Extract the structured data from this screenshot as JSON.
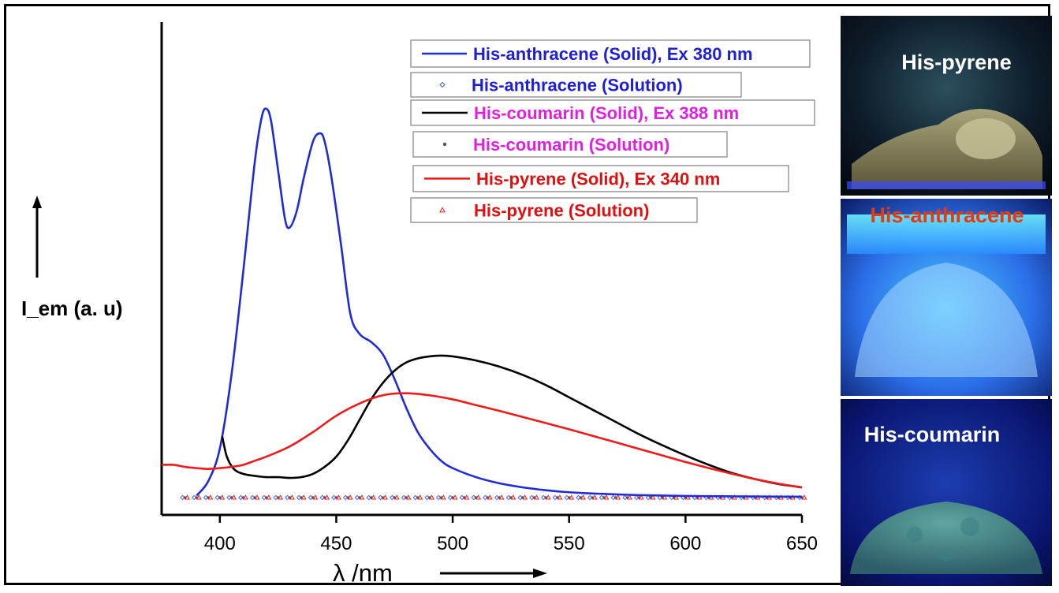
{
  "chart_data": {
    "type": "line",
    "title": "",
    "xlabel": "λ /nm",
    "ylabel": "I_em (a. u)",
    "xlim": [
      375,
      650
    ],
    "ylim": [
      0,
      1
    ],
    "x_ticks": [
      400,
      450,
      500,
      550,
      600,
      650
    ],
    "grid": false,
    "legend_position": "top-center",
    "legend": [
      {
        "label": "His-anthracene (Solid), Ex 380 nm",
        "text_color": "#1f1fd8",
        "color": "#1f2bd6",
        "marker": "line"
      },
      {
        "label": "His-anthracene (Solution)",
        "text_color": "#1f1fd8",
        "color": "#4a5cff",
        "marker": "diamond"
      },
      {
        "label": "His-coumarin (Solid), Ex 388 nm",
        "text_color": "#e020e0",
        "color": "#000000",
        "marker": "line"
      },
      {
        "label": "His-coumarin (Solution)",
        "text_color": "#e020e0",
        "color": "#555555",
        "marker": "dot"
      },
      {
        "label": "His-pyrene (Solid), Ex 340 nm",
        "text_color": "#e01010",
        "color": "#ee1b1b",
        "marker": "line"
      },
      {
        "label": "His-pyrene (Solution)",
        "text_color": "#e01010",
        "color": "#ee1b1b",
        "marker": "triangle"
      }
    ],
    "series": [
      {
        "key": "anth_solid",
        "color": "#1f2bd6",
        "style": "line",
        "x": [
          390,
          395,
          400,
          405,
          410,
          415,
          418,
          420,
          422,
          425,
          428,
          430,
          433,
          436,
          440,
          443,
          445,
          448,
          452,
          456,
          460,
          465,
          470,
          475,
          480,
          485,
          490,
          495,
          500,
          510,
          520,
          530,
          540,
          550,
          560,
          580,
          600,
          620,
          650
        ],
        "y": [
          0.005,
          0.04,
          0.12,
          0.3,
          0.55,
          0.82,
          0.93,
          0.95,
          0.92,
          0.8,
          0.68,
          0.66,
          0.7,
          0.78,
          0.87,
          0.89,
          0.87,
          0.78,
          0.62,
          0.45,
          0.4,
          0.38,
          0.35,
          0.29,
          0.22,
          0.16,
          0.12,
          0.09,
          0.072,
          0.05,
          0.035,
          0.025,
          0.018,
          0.013,
          0.01,
          0.006,
          0.004,
          0.003,
          0.002
        ]
      },
      {
        "key": "coum_solid",
        "color": "#000000",
        "style": "line",
        "x": [
          401,
          403,
          406,
          410,
          415,
          420,
          425,
          430,
          435,
          440,
          445,
          450,
          455,
          460,
          465,
          470,
          475,
          480,
          485,
          490,
          495,
          500,
          510,
          520,
          530,
          540,
          550,
          560,
          570,
          580,
          590,
          600,
          610,
          620,
          630,
          640,
          650
        ],
        "y": [
          0.15,
          0.1,
          0.07,
          0.058,
          0.053,
          0.05,
          0.05,
          0.048,
          0.05,
          0.058,
          0.075,
          0.1,
          0.14,
          0.19,
          0.24,
          0.28,
          0.31,
          0.33,
          0.34,
          0.345,
          0.347,
          0.345,
          0.335,
          0.32,
          0.3,
          0.275,
          0.245,
          0.215,
          0.185,
          0.155,
          0.128,
          0.103,
          0.08,
          0.06,
          0.045,
          0.033,
          0.025
        ]
      },
      {
        "key": "pyr_solid",
        "color": "#ee1b1b",
        "style": "line",
        "x": [
          375,
          380,
          385,
          390,
          395,
          400,
          405,
          410,
          415,
          420,
          430,
          440,
          450,
          460,
          470,
          480,
          490,
          500,
          510,
          520,
          530,
          540,
          550,
          560,
          570,
          580,
          590,
          600,
          610,
          620,
          630,
          640,
          650
        ],
        "y": [
          0.08,
          0.08,
          0.075,
          0.072,
          0.07,
          0.072,
          0.075,
          0.08,
          0.09,
          0.1,
          0.125,
          0.16,
          0.2,
          0.23,
          0.25,
          0.255,
          0.25,
          0.24,
          0.226,
          0.212,
          0.197,
          0.182,
          0.167,
          0.151,
          0.135,
          0.119,
          0.103,
          0.087,
          0.072,
          0.058,
          0.045,
          0.034,
          0.025
        ]
      },
      {
        "key": "anth_soln",
        "color": "#4a5cff",
        "style": "diamond",
        "value": 0.0
      },
      {
        "key": "coum_soln",
        "color": "#555555",
        "style": "dot",
        "value": 0.0
      },
      {
        "key": "pyr_soln",
        "color": "#ee1b1b",
        "style": "triangle",
        "value": 0.0
      }
    ]
  },
  "photos": {
    "pyrene": {
      "label": "His-pyrene",
      "label_color": "#ffffff"
    },
    "anthracene": {
      "label": "His-anthracene",
      "label_color": "#e63a10"
    },
    "coumarin": {
      "label": "His-coumarin",
      "label_color": "#ffffff"
    }
  }
}
